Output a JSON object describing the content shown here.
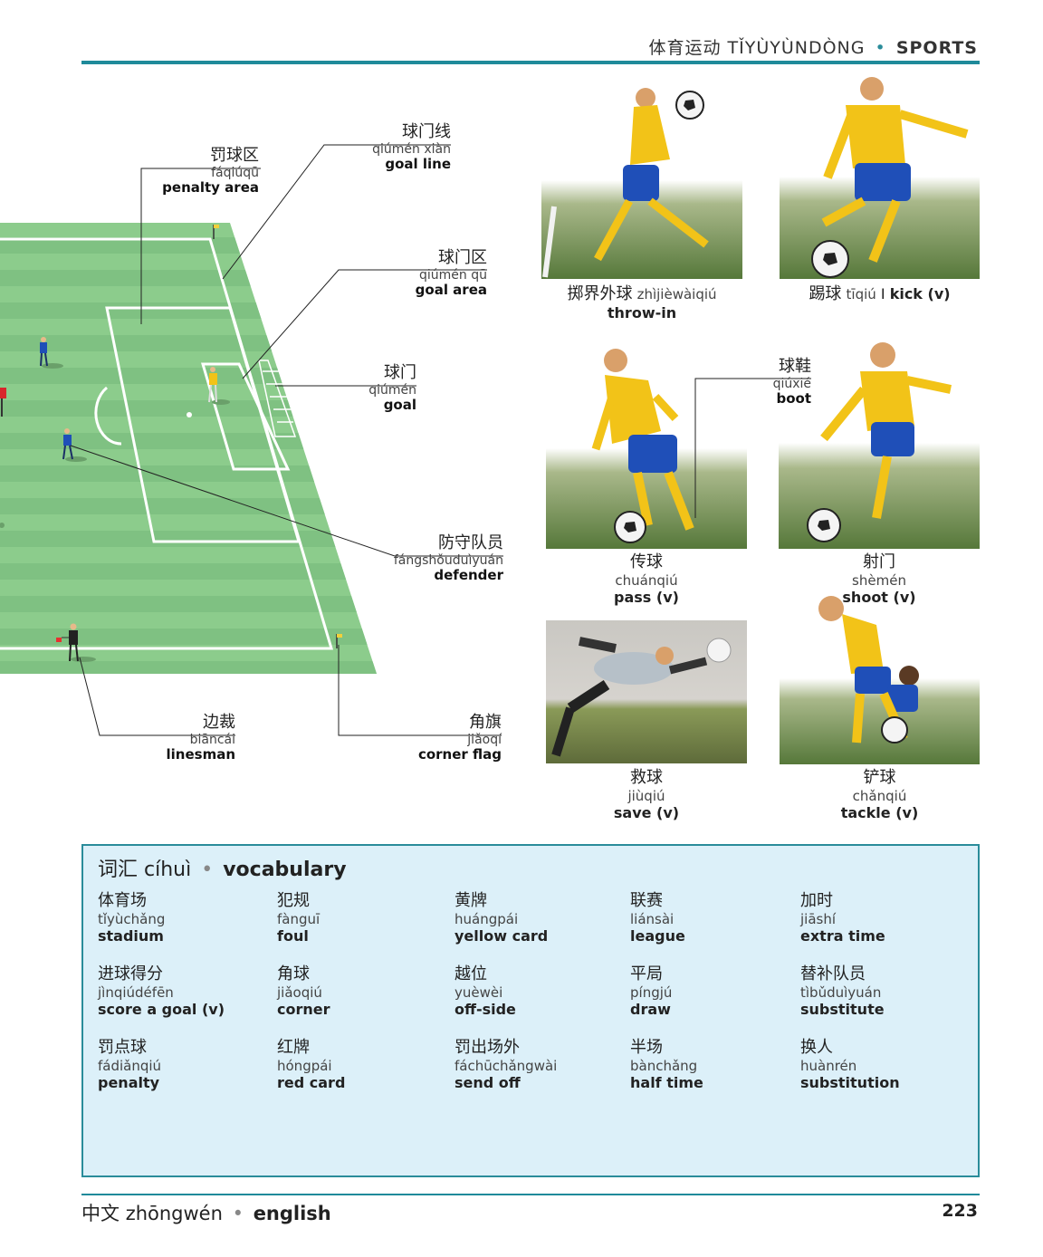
{
  "header": {
    "zh": "体育运动",
    "pinyin": "TǏYÙYÙNDÒNG",
    "en": "SPORTS"
  },
  "diagram_labels": [
    {
      "key": "penalty_area",
      "zh": "罚球区",
      "py": "fáqiúqū",
      "en": "penalty area"
    },
    {
      "key": "goal_line",
      "zh": "球门线",
      "py": "qiúmén xiàn",
      "en": "goal line"
    },
    {
      "key": "goal_area",
      "zh": "球门区",
      "py": "qiúmén qū",
      "en": "goal area"
    },
    {
      "key": "goal",
      "zh": "球门",
      "py": "qiúmén",
      "en": "goal"
    },
    {
      "key": "defender",
      "zh": "防守队员",
      "py": "fángshǒuduìyuán",
      "en": "defender"
    },
    {
      "key": "linesman",
      "zh": "边裁",
      "py": "biāncái",
      "en": "linesman"
    },
    {
      "key": "corner_flag",
      "zh": "角旗",
      "py": "jiǎoqí",
      "en": "corner flag"
    }
  ],
  "photos": [
    {
      "key": "throw_in",
      "zh": "掷界外球",
      "py": "zhìjièwàiqiú",
      "en": "throw-in"
    },
    {
      "key": "kick",
      "zh": "踢球",
      "py": "tīqiú",
      "en": "kick (v)"
    },
    {
      "key": "pass",
      "zh": "传球",
      "py": "chuánqiú",
      "en": "pass (v)"
    },
    {
      "key": "shoot",
      "zh": "射门",
      "py": "shèmén",
      "en": "shoot (v)"
    },
    {
      "key": "save",
      "zh": "救球",
      "py": "jiùqiú",
      "en": "save (v)"
    },
    {
      "key": "tackle",
      "zh": "铲球",
      "py": "chǎnqiú",
      "en": "tackle (v)"
    }
  ],
  "boot_label": {
    "zh": "球鞋",
    "py": "qiúxié",
    "en": "boot"
  },
  "vocabulary": {
    "title_zh": "词汇",
    "title_py": "cíhuì",
    "title_en": "vocabulary",
    "columns": [
      [
        {
          "zh": "体育场",
          "py": "tǐyùchǎng",
          "en": "stadium"
        },
        {
          "zh": "进球得分",
          "py": "jìnqiúdéfēn",
          "en": "score a goal (v)"
        },
        {
          "zh": "罚点球",
          "py": "fádiǎnqiú",
          "en": "penalty"
        }
      ],
      [
        {
          "zh": "犯规",
          "py": "fànguī",
          "en": "foul"
        },
        {
          "zh": "角球",
          "py": "jiǎoqiú",
          "en": "corner"
        },
        {
          "zh": "红牌",
          "py": "hóngpái",
          "en": "red card"
        }
      ],
      [
        {
          "zh": "黄牌",
          "py": "huángpái",
          "en": "yellow card"
        },
        {
          "zh": "越位",
          "py": "yuèwèi",
          "en": "off-side"
        },
        {
          "zh": "罚出场外",
          "py": "fáchūchǎngwài",
          "en": "send off"
        }
      ],
      [
        {
          "zh": "联赛",
          "py": "liánsài",
          "en": "league"
        },
        {
          "zh": "平局",
          "py": "píngjú",
          "en": "draw"
        },
        {
          "zh": "半场",
          "py": "bànchǎng",
          "en": "half time"
        }
      ],
      [
        {
          "zh": "加时",
          "py": "jiāshí",
          "en": "extra time"
        },
        {
          "zh": "替补队员",
          "py": "tìbǔduìyuán",
          "en": "substitute"
        },
        {
          "zh": "换人",
          "py": "huànrén",
          "en": "substitution"
        }
      ]
    ]
  },
  "footer": {
    "zh": "中文",
    "py": "zhōngwén",
    "en": "english",
    "page": "223"
  },
  "colors": {
    "accent": "#1f8a9a",
    "pitch_light": "#8ccc8c",
    "pitch_dark": "#79be7c",
    "vocab_bg": "#dcf0f9",
    "shirt": "#f2c318",
    "shorts": "#1f4fb8"
  }
}
